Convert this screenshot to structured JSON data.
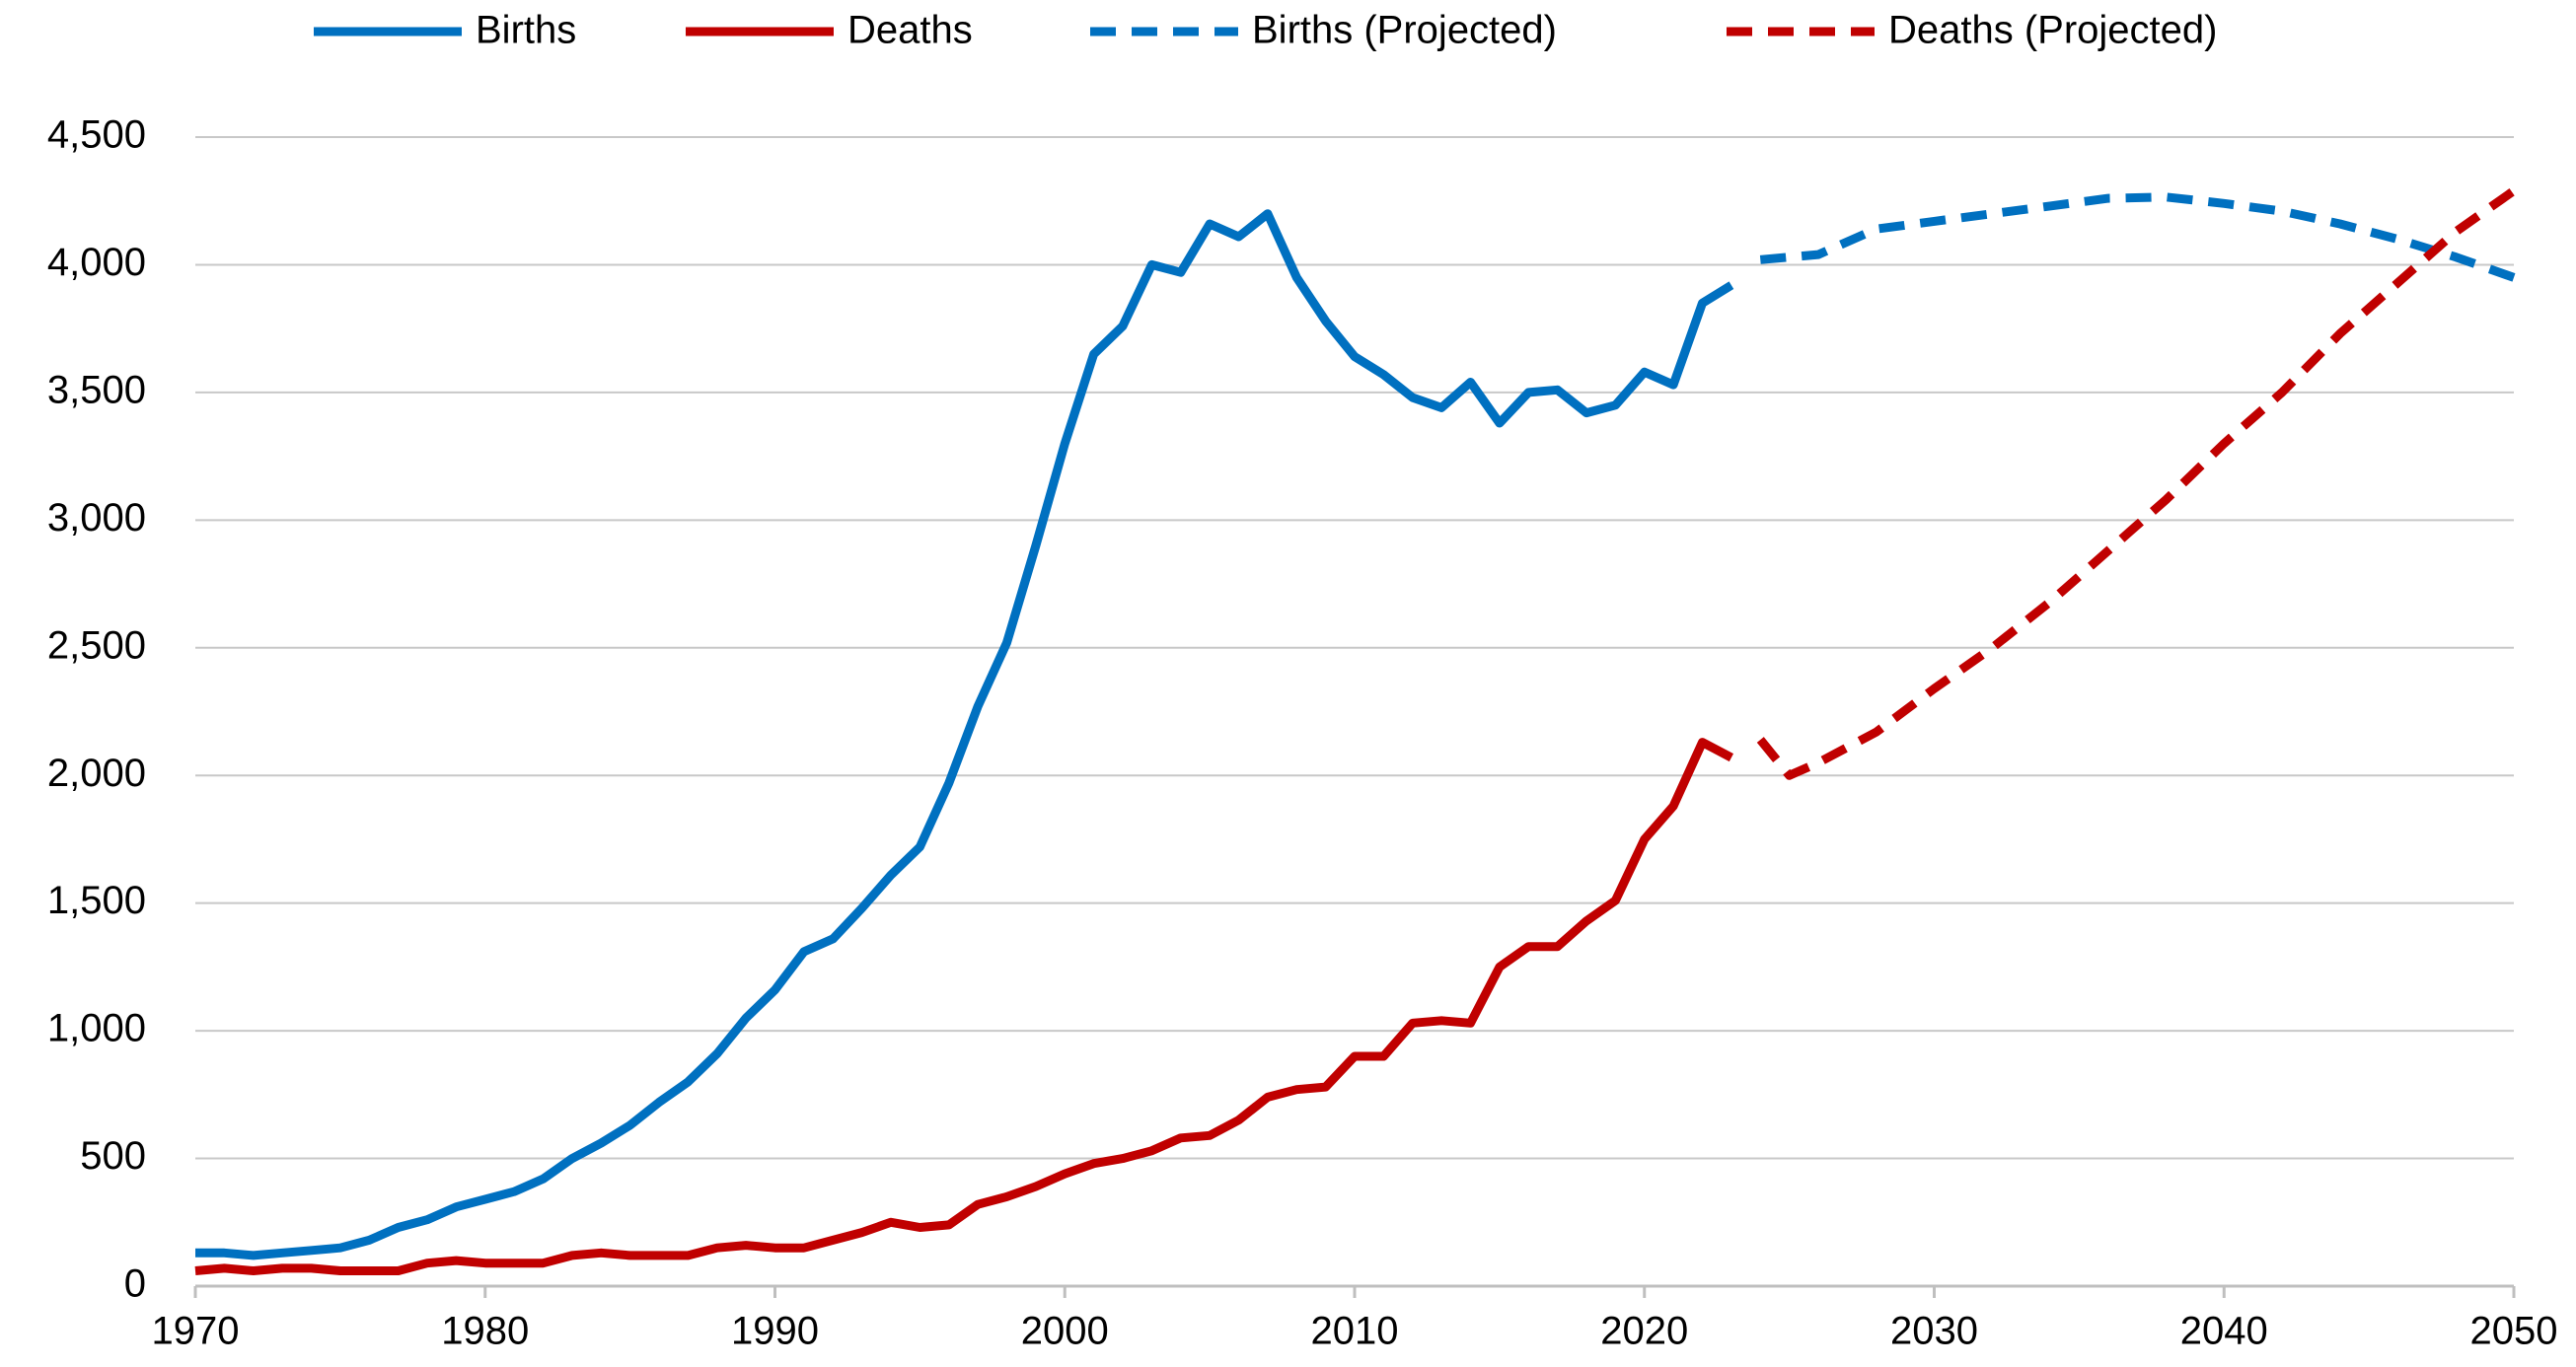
{
  "chart_data": {
    "type": "line",
    "series": [
      {
        "name": "Births",
        "color": "#0070c0",
        "dashed": false,
        "x": [
          1970,
          1971,
          1972,
          1973,
          1974,
          1975,
          1976,
          1977,
          1978,
          1979,
          1980,
          1981,
          1982,
          1983,
          1984,
          1985,
          1986,
          1987,
          1988,
          1989,
          1990,
          1991,
          1992,
          1993,
          1994,
          1995,
          1996,
          1997,
          1998,
          1999,
          2000,
          2001,
          2002,
          2003,
          2004,
          2005,
          2006,
          2007,
          2008,
          2009,
          2010,
          2011,
          2012,
          2013,
          2014,
          2015,
          2016,
          2017,
          2018,
          2019,
          2020,
          2021,
          2022,
          2023
        ],
        "values": [
          130,
          130,
          120,
          130,
          140,
          150,
          180,
          230,
          260,
          310,
          340,
          370,
          420,
          500,
          560,
          630,
          720,
          800,
          910,
          1050,
          1160,
          1310,
          1360,
          1480,
          1610,
          1720,
          1970,
          2270,
          2520,
          2900,
          3300,
          3650,
          3760,
          4000,
          3970,
          4160,
          4110,
          4200,
          3950,
          3780,
          3640,
          3570,
          3480,
          3440,
          3540,
          3380,
          3500,
          3510,
          3420,
          3450,
          3580,
          3530,
          3850,
          3920
        ]
      },
      {
        "name": "Deaths",
        "color": "#c00000",
        "dashed": false,
        "x": [
          1970,
          1971,
          1972,
          1973,
          1974,
          1975,
          1976,
          1977,
          1978,
          1979,
          1980,
          1981,
          1982,
          1983,
          1984,
          1985,
          1986,
          1987,
          1988,
          1989,
          1990,
          1991,
          1992,
          1993,
          1994,
          1995,
          1996,
          1997,
          1998,
          1999,
          2000,
          2001,
          2002,
          2003,
          2004,
          2005,
          2006,
          2007,
          2008,
          2009,
          2010,
          2011,
          2012,
          2013,
          2014,
          2015,
          2016,
          2017,
          2018,
          2019,
          2020,
          2021,
          2022,
          2023
        ],
        "values": [
          60,
          70,
          60,
          70,
          70,
          60,
          60,
          60,
          90,
          100,
          90,
          90,
          90,
          120,
          130,
          120,
          120,
          120,
          150,
          160,
          150,
          150,
          180,
          210,
          250,
          230,
          240,
          320,
          350,
          390,
          440,
          480,
          500,
          530,
          580,
          590,
          650,
          740,
          770,
          780,
          900,
          900,
          1030,
          1040,
          1030,
          1250,
          1330,
          1330,
          1430,
          1510,
          1750,
          1880,
          2130,
          2070
        ]
      },
      {
        "name": "Births (Projected)",
        "color": "#0070c0",
        "dashed": true,
        "x": [
          2024,
          2026,
          2028,
          2030,
          2032,
          2034,
          2036,
          2038,
          2040,
          2042,
          2044,
          2046,
          2048,
          2050
        ],
        "values": [
          4020,
          4040,
          4140,
          4170,
          4200,
          4230,
          4260,
          4265,
          4240,
          4210,
          4160,
          4100,
          4030,
          3950
        ]
      },
      {
        "name": "Deaths (Projected)",
        "color": "#c00000",
        "dashed": true,
        "x": [
          2024,
          2025,
          2026,
          2028,
          2030,
          2032,
          2034,
          2036,
          2038,
          2040,
          2042,
          2044,
          2046,
          2048,
          2050
        ],
        "values": [
          2140,
          2000,
          2050,
          2170,
          2340,
          2500,
          2680,
          2880,
          3080,
          3300,
          3500,
          3730,
          3930,
          4130,
          4290
        ]
      }
    ],
    "xlim": [
      1970,
      2050
    ],
    "xticks": [
      1970,
      1980,
      1990,
      2000,
      2010,
      2020,
      2030,
      2040,
      2050
    ],
    "ylim": [
      0,
      4500
    ],
    "yticks": [
      0,
      500,
      {
        "value": 1000,
        "label": "1,000"
      },
      {
        "value": 1500,
        "label": "1,500"
      },
      {
        "value": 2000,
        "label": "2,000"
      },
      {
        "value": 2500,
        "label": "2,500"
      },
      {
        "value": 3000,
        "label": "3,000"
      },
      {
        "value": 3500,
        "label": "3,500"
      },
      {
        "value": 4000,
        "label": "4,000"
      },
      {
        "value": 4500,
        "label": "4,500"
      }
    ],
    "grid": true,
    "legend": "top"
  }
}
